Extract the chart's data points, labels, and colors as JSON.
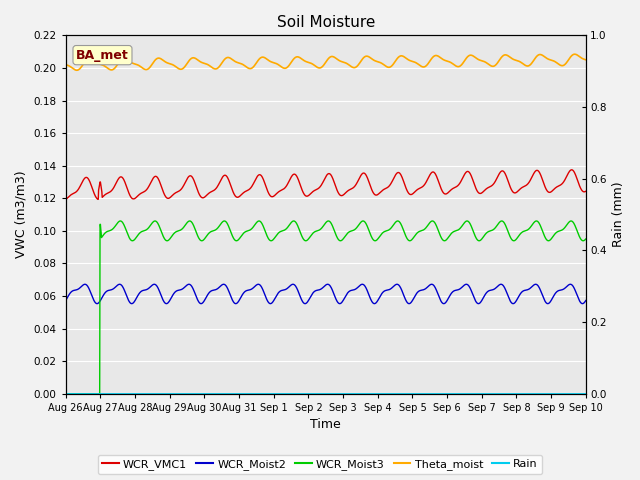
{
  "title": "Soil Moisture",
  "xlabel": "Time",
  "ylabel_left": "VWC (m3/m3)",
  "ylabel_right": "Rain (mm)",
  "annotation": "BA_met",
  "ylim_left": [
    0.0,
    0.22
  ],
  "ylim_right": [
    0.0,
    1.0
  ],
  "yticks_left": [
    0.0,
    0.02,
    0.04,
    0.06,
    0.08,
    0.1,
    0.12,
    0.14,
    0.16,
    0.18,
    0.2,
    0.22
  ],
  "yticks_right": [
    0.0,
    0.2,
    0.4,
    0.6,
    0.8,
    1.0
  ],
  "n_points": 1440,
  "days": 15,
  "colors": {
    "WCR_VMC1": "#dd0000",
    "WCR_Moist2": "#0000cc",
    "WCR_Moist3": "#00cc00",
    "Theta_moist": "#ffaa00",
    "Rain": "#00ccee"
  },
  "fig_bg": "#f2f2f2",
  "ax_bg": "#e8e8e8",
  "grid_color": "#ffffff",
  "tick_labels": [
    "Aug 26",
    "Aug 27",
    "Aug 28",
    "Aug 29",
    "Aug 30",
    "Aug 31",
    "Sep 1",
    "Sep 2",
    "Sep 3",
    "Sep 4",
    "Sep 5",
    "Sep 6",
    "Sep 7",
    "Sep 8",
    "Sep 9",
    "Sep 10"
  ]
}
